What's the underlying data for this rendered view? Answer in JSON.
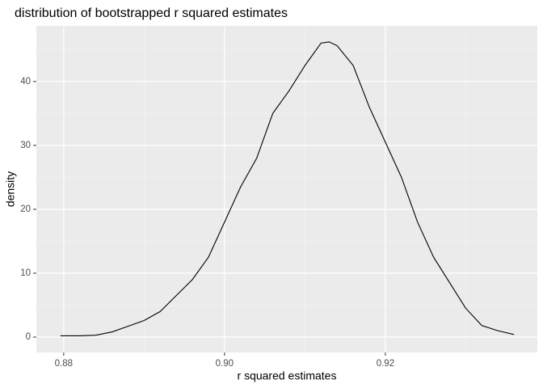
{
  "chart_data": {
    "type": "line",
    "title": "distribution of bootstrapped r squared estimates",
    "x_label": "r squared estimates",
    "y_label": "density",
    "x": [
      0.8796,
      0.882,
      0.884,
      0.886,
      0.888,
      0.89,
      0.892,
      0.894,
      0.896,
      0.898,
      0.9,
      0.902,
      0.904,
      0.906,
      0.908,
      0.91,
      0.912,
      0.913,
      0.914,
      0.916,
      0.918,
      0.92,
      0.922,
      0.924,
      0.926,
      0.928,
      0.93,
      0.932,
      0.934,
      0.936
    ],
    "values": [
      0.2,
      0.2,
      0.3,
      0.8,
      1.7,
      2.6,
      4.0,
      6.5,
      9.0,
      12.5,
      18,
      23.5,
      28,
      35,
      38.5,
      42.5,
      46,
      46.2,
      45.6,
      42.5,
      36,
      30.5,
      25,
      18,
      12.5,
      8.5,
      4.5,
      1.8,
      1.0,
      0.4
    ],
    "color": "#000000",
    "xlim": [
      0.8766,
      0.9389
    ],
    "ylim": [
      -2.4,
      48.7
    ],
    "xticks": [
      0.88,
      {
        "value": 0.9,
        "label": "0.90"
      },
      0.92
    ],
    "yticks": [
      0,
      10,
      20,
      30,
      40
    ],
    "minor_xticks": [
      0.87,
      0.89,
      0.91,
      0.93
    ],
    "minor_yticks": [
      5,
      15,
      25,
      35,
      45
    ],
    "grid": true
  }
}
